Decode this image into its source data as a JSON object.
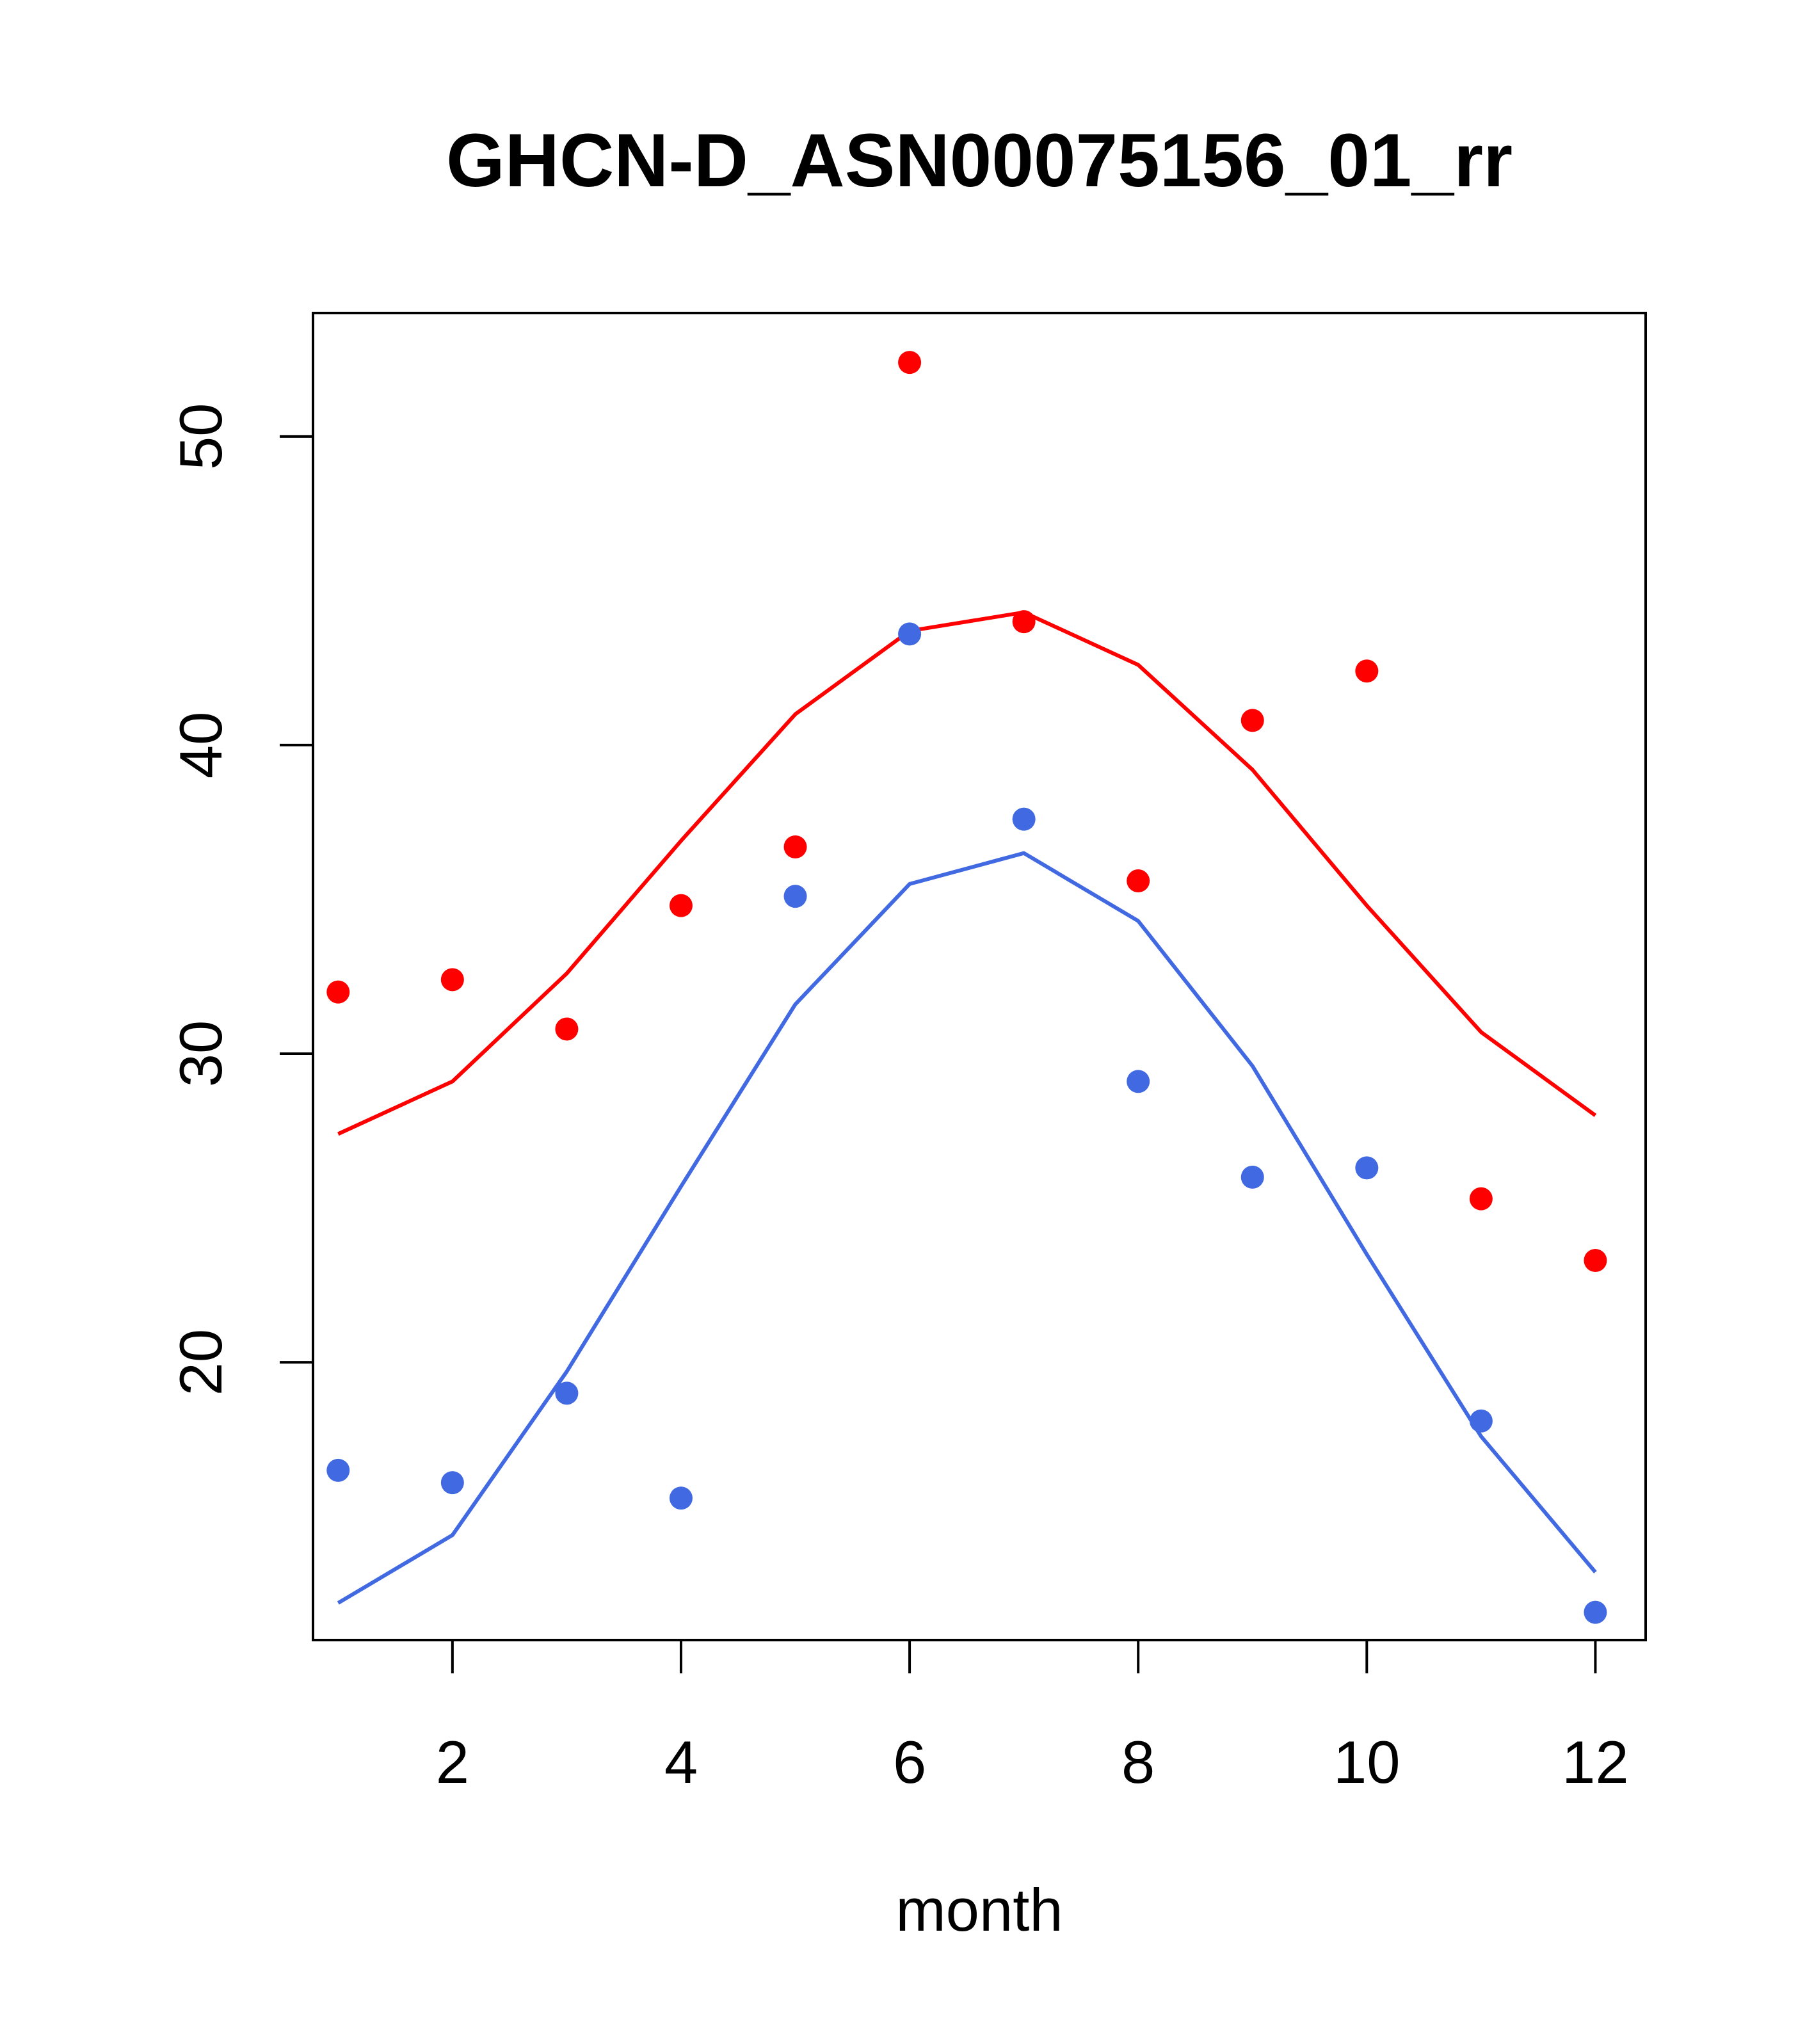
{
  "chart_data": {
    "type": "line",
    "title": "GHCN-D_ASN00075156_01_rr",
    "xlabel": "month",
    "ylabel": "",
    "xlim": [
      0.78,
      12.44
    ],
    "ylim": [
      11.0,
      54.0
    ],
    "xticks": [
      2,
      4,
      6,
      8,
      10,
      12
    ],
    "yticks": [
      20,
      30,
      40,
      50
    ],
    "x": [
      1,
      2,
      3,
      4,
      5,
      6,
      7,
      8,
      9,
      10,
      11,
      12
    ],
    "series": [
      {
        "kind": "line",
        "color": "#ff0000",
        "values": [
          27.4,
          29.1,
          32.6,
          36.9,
          41.0,
          43.7,
          44.3,
          42.6,
          39.2,
          34.8,
          30.7,
          28.0
        ]
      },
      {
        "kind": "line",
        "color": "#4169e1",
        "values": [
          12.2,
          14.4,
          19.7,
          25.7,
          31.6,
          35.5,
          36.5,
          34.3,
          29.6,
          23.5,
          17.6,
          13.2
        ]
      },
      {
        "kind": "points",
        "color": "#ff0000",
        "values": [
          32.0,
          32.4,
          30.8,
          34.8,
          36.7,
          52.4,
          44.0,
          35.6,
          40.8,
          42.4,
          25.3,
          23.3
        ]
      },
      {
        "kind": "points",
        "color": "#4169e1",
        "values": [
          16.5,
          16.1,
          19.0,
          15.6,
          35.1,
          43.6,
          37.6,
          29.1,
          26.0,
          26.3,
          18.1,
          11.9
        ]
      }
    ]
  }
}
